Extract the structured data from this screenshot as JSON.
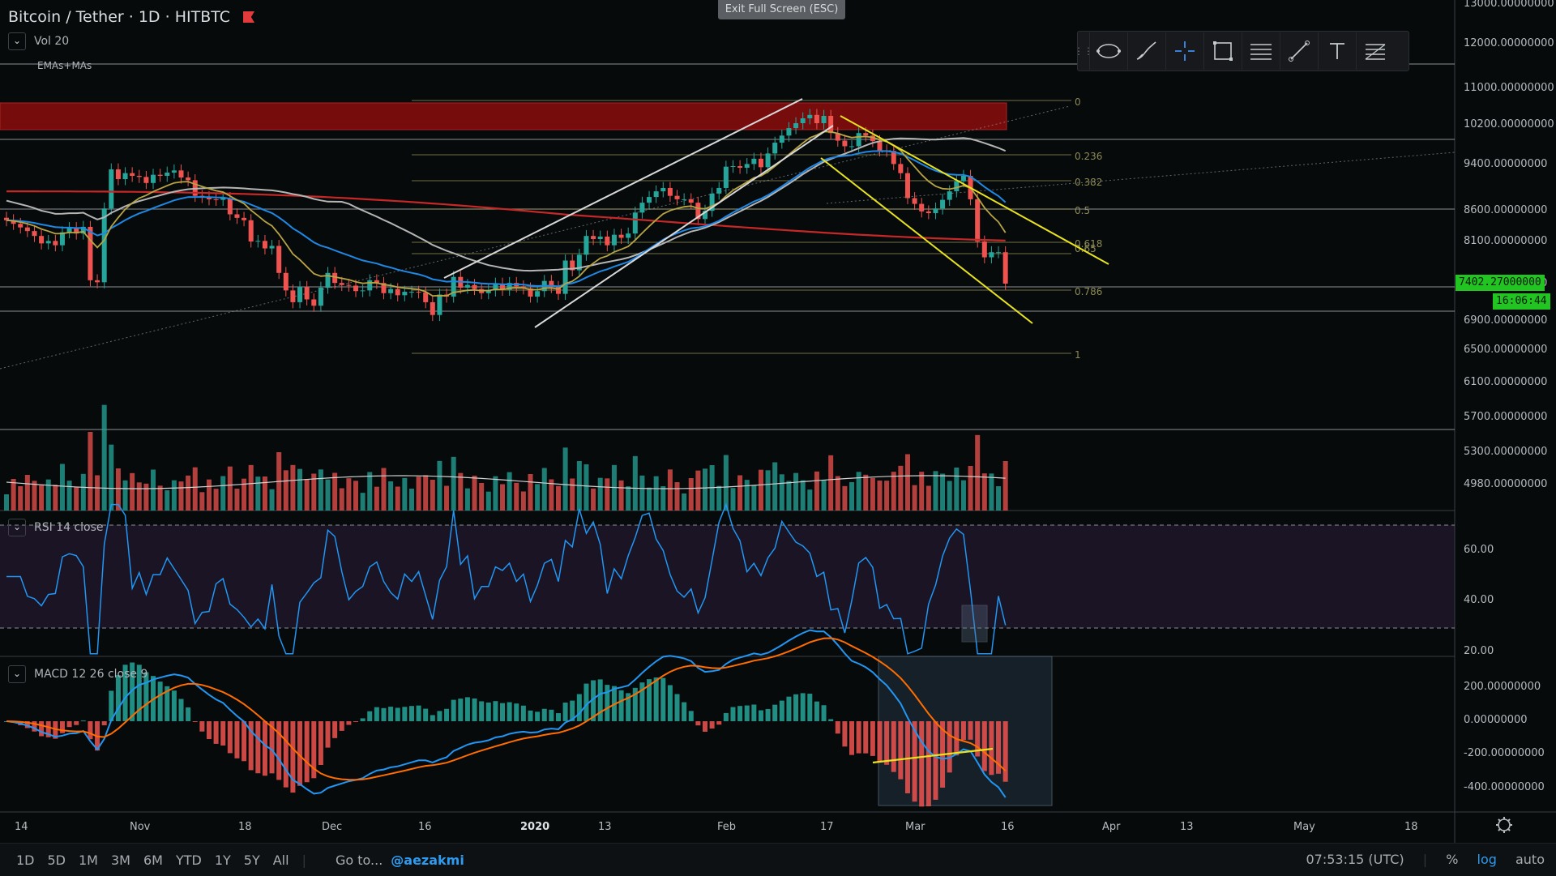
{
  "header": {
    "symbol": "Bitcoin / Tether",
    "interval": "1D",
    "exchange": "HITBTC",
    "separator": "·"
  },
  "indicators": {
    "vol": "Vol 20",
    "emas": "EMAs+MAs",
    "rsi": "RSI 14 close",
    "macd": "MACD 12 26 close 9"
  },
  "exit_fullscreen": "Exit Full Screen (ESC)",
  "price_tag": {
    "price": "7402.27000000",
    "countdown": "16:06:44"
  },
  "colors": {
    "up": "#26a69a",
    "down": "#ef5350",
    "yellow": "#e8e31f",
    "ema20": "#b7a443",
    "ema50": "#1e88e5",
    "ma100": "#b5b5b5",
    "ma200": "#c62828",
    "rsi": "#2196f3",
    "macd": "#2196f3",
    "signal": "#ff6d00",
    "zone": "#8b0d0d"
  },
  "toolbar_icons": [
    "grip-icon",
    "ellipse-tool-icon",
    "brush-tool-icon",
    "crosshair-tool-icon",
    "rectangle-tool-icon",
    "lines-tool-icon",
    "trendline-tool-icon",
    "text-tool-icon",
    "fib-tool-icon"
  ],
  "bottom": {
    "ranges": [
      "1D",
      "5D",
      "1M",
      "3M",
      "6M",
      "YTD",
      "1Y",
      "5Y",
      "All"
    ],
    "goto": "Go to...",
    "author": "@aezakmi",
    "time": "07:53:15 (UTC)",
    "percent": "%",
    "log": "log",
    "auto": "auto"
  },
  "chart_data": {
    "type": "candlestick",
    "price_axis": {
      "scale": "log",
      "ticks": [
        "13000.00000000",
        "12000.00000000",
        "11000.00000000",
        "10200.00000000",
        "9400.00000000",
        "8600.00000000",
        "8100.00000000",
        "7400.00000000",
        "6900.00000000",
        "6500.00000000",
        "6100.00000000",
        "5700.00000000",
        "5300.00000000",
        "4980.00000000"
      ]
    },
    "time_axis": {
      "ticks": [
        "14",
        "Nov",
        "18",
        "Dec",
        "16",
        "2020",
        "13",
        "Feb",
        "17",
        "Mar",
        "16",
        "Apr",
        "13",
        "May",
        "18"
      ]
    },
    "fib_levels": [
      "0",
      "0.236",
      "0.382",
      "0.5",
      "0.618",
      "0.65",
      "0.786",
      "1"
    ],
    "rsi_axis": {
      "ticks": [
        "60.00",
        "40.00",
        "20.00"
      ]
    },
    "macd_axis": {
      "ticks": [
        "200.00000000",
        "0.00000000",
        "-200.00000000",
        "-400.00000000"
      ]
    },
    "closes": [
      8400,
      8340,
      8280,
      8220,
      8140,
      8020,
      8060,
      7990,
      8200,
      8270,
      8180,
      8290,
      7450,
      7420,
      8600,
      9300,
      9120,
      9230,
      9180,
      9160,
      9050,
      9200,
      9180,
      9240,
      9280,
      9150,
      9100,
      8820,
      8800,
      8760,
      8750,
      8780,
      8500,
      8440,
      8400,
      8050,
      8060,
      7940,
      7980,
      7560,
      7300,
      7130,
      7350,
      7170,
      7080,
      7340,
      7560,
      7410,
      7380,
      7370,
      7290,
      7300,
      7450,
      7410,
      7260,
      7320,
      7230,
      7280,
      7280,
      7270,
      7130,
      6950,
      7240,
      7210,
      7500,
      7340,
      7380,
      7320,
      7260,
      7300,
      7400,
      7310,
      7410,
      7360,
      7330,
      7210,
      7290,
      7440,
      7350,
      7250,
      7750,
      7600,
      7840,
      8140,
      8090,
      8130,
      7990,
      8160,
      8110,
      8180,
      8530,
      8700,
      8800,
      8900,
      8960,
      8820,
      8760,
      8760,
      8700,
      8420,
      8560,
      8860,
      8960,
      9350,
      9360,
      9330,
      9400,
      9500,
      9340,
      9600,
      9810,
      9950,
      10100,
      10200,
      10300,
      10370,
      10200,
      10350,
      10000,
      9850,
      9740,
      9740,
      10000,
      9950,
      9840,
      9660,
      9650,
      9400,
      9230,
      8780,
      8680,
      8550,
      8520,
      8600,
      8750,
      8900,
      9080,
      9180,
      8760,
      8050,
      7800,
      7880,
      7880,
      7400
    ]
  }
}
